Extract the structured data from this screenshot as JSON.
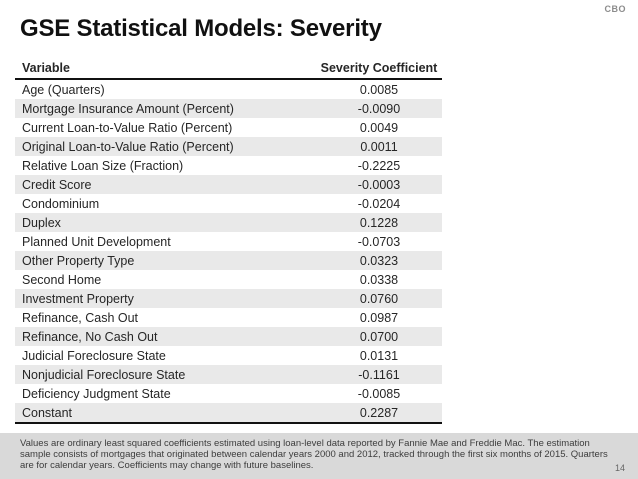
{
  "header": {
    "brand": "CBO",
    "title": "GSE Statistical Models: Severity"
  },
  "table": {
    "columns": [
      "Variable",
      "Severity Coefficient"
    ],
    "rows": [
      {
        "variable": "Age (Quarters)",
        "coefficient": "0.0085"
      },
      {
        "variable": "Mortgage Insurance Amount (Percent)",
        "coefficient": "-0.0090"
      },
      {
        "variable": "Current Loan-to-Value Ratio (Percent)",
        "coefficient": "0.0049"
      },
      {
        "variable": "Original Loan-to-Value Ratio (Percent)",
        "coefficient": "0.0011"
      },
      {
        "variable": "Relative Loan Size (Fraction)",
        "coefficient": "-0.2225"
      },
      {
        "variable": "Credit Score",
        "coefficient": "-0.0003"
      },
      {
        "variable": "Condominium",
        "coefficient": "-0.0204"
      },
      {
        "variable": "Duplex",
        "coefficient": "0.1228"
      },
      {
        "variable": "Planned Unit Development",
        "coefficient": "-0.0703"
      },
      {
        "variable": "Other Property Type",
        "coefficient": "0.0323"
      },
      {
        "variable": "Second Home",
        "coefficient": "0.0338"
      },
      {
        "variable": "Investment Property",
        "coefficient": "0.0760"
      },
      {
        "variable": "Refinance, Cash Out",
        "coefficient": "0.0987"
      },
      {
        "variable": "Refinance, No Cash Out",
        "coefficient": "0.0700"
      },
      {
        "variable": "Judicial Foreclosure State",
        "coefficient": "0.0131"
      },
      {
        "variable": "Nonjudicial Foreclosure State",
        "coefficient": "-0.1161"
      },
      {
        "variable": "Deficiency Judgment State",
        "coefficient": "-0.0085"
      },
      {
        "variable": "Constant",
        "coefficient": "0.2287"
      }
    ]
  },
  "footer": {
    "note": "Values are ordinary least squared coefficients estimated using loan-level data reported by Fannie Mae and Freddie Mac. The estimation sample consists of mortgages that originated between calendar years 2000 and 2012, tracked through the first six months of 2015. Quarters are for calendar years. Coefficients may change with future baselines.",
    "page_number": "14"
  },
  "colors": {
    "row_shade": "#e9e9e9",
    "footer_band": "#d9d9d9",
    "rule": "#111111",
    "brand_gray": "#8c8c8c"
  }
}
